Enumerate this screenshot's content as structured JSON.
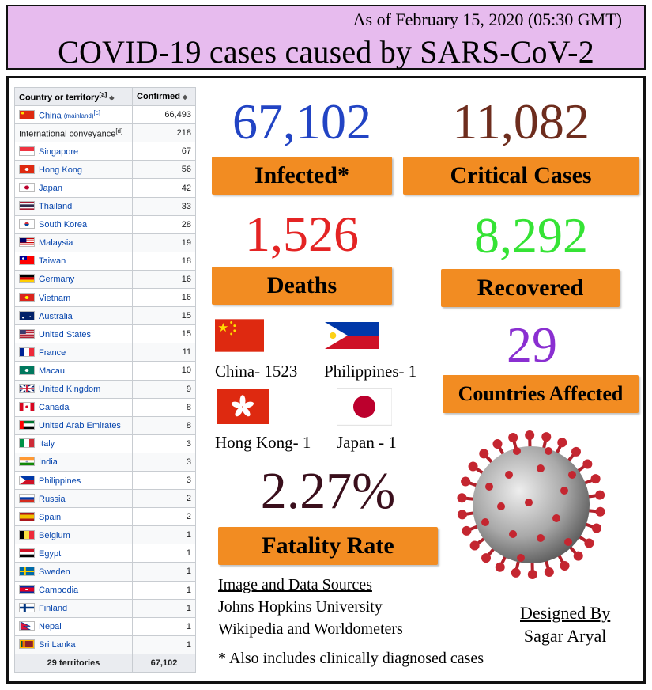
{
  "header": {
    "date": "As of February 15, 2020 (05:30 GMT)",
    "title": "COVID-19 cases caused by SARS-CoV-2"
  },
  "table": {
    "col_country": "Country or territory",
    "col_country_sup": "[a]",
    "col_confirmed": "Confirmed",
    "rows": [
      {
        "name": "China",
        "small": "(mainland)",
        "sup": "[c]",
        "count": "66,493",
        "flag": "cn"
      },
      {
        "name": "International conveyance",
        "sup": "[d]",
        "count": "218",
        "flag": "none"
      },
      {
        "name": "Singapore",
        "count": "67",
        "flag": "sg"
      },
      {
        "name": "Hong Kong",
        "count": "56",
        "flag": "hk"
      },
      {
        "name": "Japan",
        "count": "42",
        "flag": "jp"
      },
      {
        "name": "Thailand",
        "count": "33",
        "flag": "th"
      },
      {
        "name": "South Korea",
        "count": "28",
        "flag": "kr"
      },
      {
        "name": "Malaysia",
        "count": "19",
        "flag": "my"
      },
      {
        "name": "Taiwan",
        "count": "18",
        "flag": "tw"
      },
      {
        "name": "Germany",
        "count": "16",
        "flag": "de"
      },
      {
        "name": "Vietnam",
        "count": "16",
        "flag": "vn"
      },
      {
        "name": "Australia",
        "count": "15",
        "flag": "au"
      },
      {
        "name": "United States",
        "count": "15",
        "flag": "us"
      },
      {
        "name": "France",
        "count": "11",
        "flag": "fr"
      },
      {
        "name": "Macau",
        "count": "10",
        "flag": "mo"
      },
      {
        "name": "United Kingdom",
        "count": "9",
        "flag": "gb"
      },
      {
        "name": "Canada",
        "count": "8",
        "flag": "ca"
      },
      {
        "name": "United Arab Emirates",
        "count": "8",
        "flag": "ae"
      },
      {
        "name": "Italy",
        "count": "3",
        "flag": "it"
      },
      {
        "name": "India",
        "count": "3",
        "flag": "in"
      },
      {
        "name": "Philippines",
        "count": "3",
        "flag": "ph"
      },
      {
        "name": "Russia",
        "count": "2",
        "flag": "ru"
      },
      {
        "name": "Spain",
        "count": "2",
        "flag": "es"
      },
      {
        "name": "Belgium",
        "count": "1",
        "flag": "be"
      },
      {
        "name": "Egypt",
        "count": "1",
        "flag": "eg"
      },
      {
        "name": "Sweden",
        "count": "1",
        "flag": "se"
      },
      {
        "name": "Cambodia",
        "count": "1",
        "flag": "kh"
      },
      {
        "name": "Finland",
        "count": "1",
        "flag": "fi"
      },
      {
        "name": "Nepal",
        "count": "1",
        "flag": "np"
      },
      {
        "name": "Sri Lanka",
        "count": "1",
        "flag": "lk"
      }
    ],
    "footer_label": "29 territories",
    "footer_total": "67,102"
  },
  "stats": {
    "infected": {
      "value": "67,102",
      "label": "Infected*",
      "color": "#2244c4"
    },
    "critical": {
      "value": "11,082",
      "label": "Critical Cases",
      "color": "#6e2d1e"
    },
    "deaths": {
      "value": "1,526",
      "label": "Deaths",
      "color": "#e42424"
    },
    "recovered": {
      "value": "8,292",
      "label": "Recovered",
      "color": "#35e335"
    },
    "countries": {
      "value": "29",
      "label": "Countries Affected",
      "color": "#8a2fd1"
    },
    "fatality": {
      "value": "2.27%",
      "label": "Fatality Rate",
      "color": "#3a0f1c"
    },
    "label_bg": "#f28c22"
  },
  "deaths_by_country": [
    {
      "caption": "China- 1523",
      "flag": "china-flag-icon"
    },
    {
      "caption": "Philippines- 1",
      "flag": "philippines-flag-icon"
    },
    {
      "caption": "Hong Kong- 1",
      "flag": "hong-kong-flag-icon"
    },
    {
      "caption": "Japan - 1",
      "flag": "japan-flag-icon"
    }
  ],
  "sources": {
    "heading": "Image and Data Sources",
    "line1": "Johns Hopkins University",
    "line2": "Wikipedia and Worldometers"
  },
  "designer": {
    "heading": "Designed By",
    "name": "Sagar Aryal"
  },
  "footnote": "* Also includes clinically diagnosed cases",
  "image": {
    "virus": "coronavirus-illustration"
  }
}
